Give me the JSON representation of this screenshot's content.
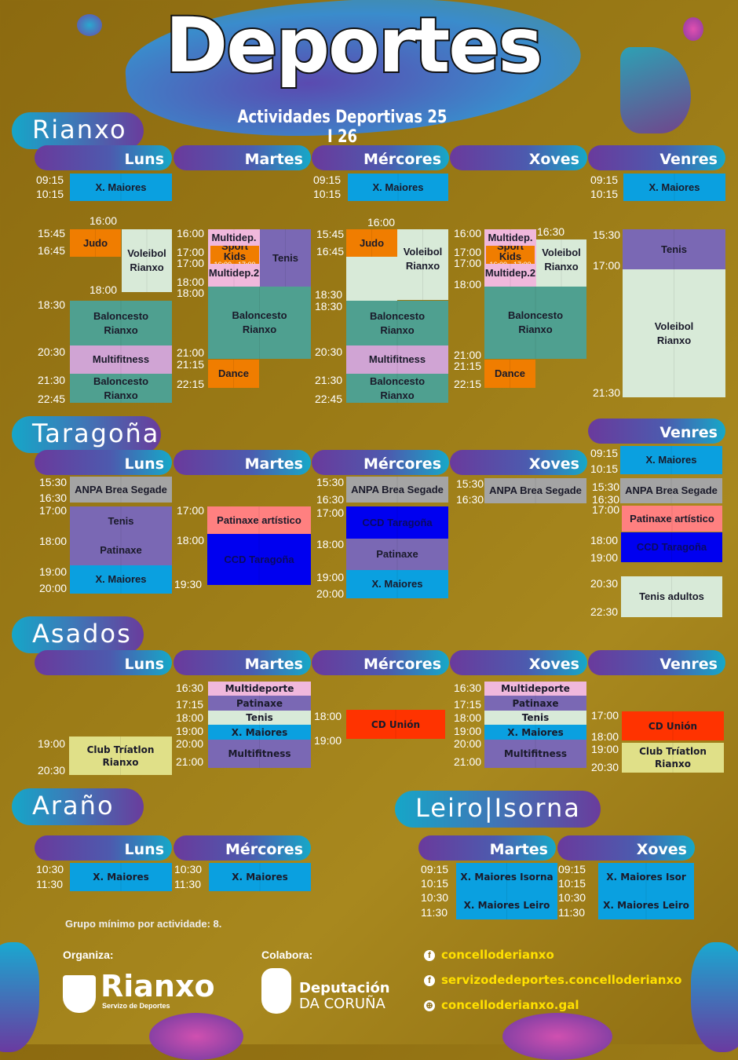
{
  "header": {
    "title": "Deportes",
    "subtitle": "Actividades Deportivas 25 I 26"
  },
  "colors": {
    "x_maiores": "#0aa0e0",
    "orange": "#f07d00",
    "light_green": "#d8ead8",
    "teal": "#4fa090",
    "lilac": "#d0a4d4",
    "pink": "#f0b8dc",
    "purple": "#7a68b4",
    "gray": "#a4a4a4",
    "salmon": "#ff8080",
    "blue": "#0000f0",
    "red": "#ff3300",
    "yellow_green": "#e0e088"
  },
  "sections": [
    {
      "label": "Rianxo",
      "days": [
        "Luns",
        "Martes",
        "Mércores",
        "Xoves",
        "Venres"
      ],
      "blocks": [
        {
          "label": "X. Maiores",
          "color": "#0aa0e0"
        },
        {
          "label": "Judo",
          "color": "#f07d00"
        },
        {
          "label": "Voleibol\nRianxo",
          "color": "#d8ead8"
        },
        {
          "label": "Baloncesto\nRianxo",
          "color": "#4fa090"
        },
        {
          "label": "Multifitness",
          "color": "#d0a4d4"
        },
        {
          "label": "Baloncesto\nRianxo",
          "color": "#4fa090"
        },
        {
          "label": "Multidep. 1",
          "color": "#f0b8dc"
        },
        {
          "label": "Multidep.2",
          "color": "#f0b8dc"
        },
        {
          "label": "Sport Kids",
          "sub": "16:00 - 17:00",
          "color": "#f07d00"
        },
        {
          "label": "Tenis",
          "color": "#7a68b4"
        },
        {
          "label": "Baloncesto\nRianxo",
          "color": "#4fa090"
        },
        {
          "label": "Dance",
          "color": "#f07d00"
        },
        {
          "label": "X. Maiores",
          "color": "#0aa0e0"
        },
        {
          "label": "Judo",
          "color": "#f07d00"
        },
        {
          "label": "Voleibol\nRianxo",
          "color": "#d8ead8"
        },
        {
          "label": "Baloncesto\nRianxo",
          "color": "#4fa090"
        },
        {
          "label": "Multifitness",
          "color": "#d0a4d4"
        },
        {
          "label": "Baloncesto\nRianxo",
          "color": "#4fa090"
        },
        {
          "label": "Multidep. 1",
          "color": "#f0b8dc"
        },
        {
          "label": "Multidep.2",
          "color": "#f0b8dc"
        },
        {
          "label": "Sport Kids",
          "sub": "16:00 - 17:00",
          "color": "#f07d00"
        },
        {
          "label": "Voleibol\nRianxo",
          "color": "#d8ead8",
          "note": "18:30"
        },
        {
          "label": "Baloncesto\nRianxo",
          "color": "#4fa090"
        },
        {
          "label": "Dance",
          "color": "#f07d00"
        },
        {
          "label": "X. Maiores",
          "color": "#0aa0e0"
        },
        {
          "label": "Tenis",
          "color": "#7a68b4"
        },
        {
          "label": "Voleibol\nRianxo",
          "color": "#d8ead8"
        }
      ],
      "times": [
        "09:15",
        "10:15",
        "16:00",
        "15:45",
        "16:45",
        "18:00",
        "18:30",
        "20:30",
        "21:30",
        "22:45",
        "16:00",
        "17:00",
        "17:00",
        "18:00",
        "18:00",
        "21:00",
        "21:15",
        "22:15",
        "09:15",
        "10:15",
        "16:00",
        "15:45",
        "16:45",
        "18:30",
        "18:30",
        "20:30",
        "21:30",
        "22:45",
        "16:00",
        "16:30",
        "17:00",
        "17:00",
        "18:00",
        "21:00",
        "21:15",
        "22:15",
        "09:15",
        "10:15",
        "15:30",
        "17:00",
        "21:30"
      ]
    },
    {
      "label": "Taragoña",
      "days": [
        "Luns",
        "Martes",
        "Mércores",
        "Xoves",
        "Venres"
      ],
      "blocks": [
        {
          "label": "ANPA Brea Segade",
          "color": "#a4a4a4"
        },
        {
          "label": "Tenis",
          "color": "#7a68b4"
        },
        {
          "label": "Patinaxe",
          "color": "#7a68b4"
        },
        {
          "label": "X. Maiores",
          "color": "#0aa0e0"
        },
        {
          "label": "Patinaxe artístico",
          "color": "#ff8080"
        },
        {
          "label": "CCD Taragoña",
          "color": "#0000f0"
        },
        {
          "label": "ANPA Brea Segade",
          "color": "#a4a4a4"
        },
        {
          "label": "CCD Taragoña",
          "color": "#0000f0"
        },
        {
          "label": "Patinaxe",
          "color": "#7a68b4"
        },
        {
          "label": "X. Maiores",
          "color": "#0aa0e0"
        },
        {
          "label": "ANPA Brea Segade",
          "color": "#a4a4a4"
        },
        {
          "label": "X. Maiores",
          "color": "#0aa0e0"
        },
        {
          "label": "ANPA Brea Segade",
          "color": "#a4a4a4"
        },
        {
          "label": "Patinaxe artístico",
          "color": "#ff8080"
        },
        {
          "label": "CCD Taragoña",
          "color": "#0000f0"
        },
        {
          "label": "Tenis adultos",
          "color": "#d8ead8"
        }
      ],
      "times": [
        "15:30",
        "16:30",
        "17:00",
        "18:00",
        "19:00",
        "20:00",
        "17:00",
        "18:00",
        "19:30",
        "15:30",
        "16:30",
        "17:00",
        "18:00",
        "19:00",
        "20:00",
        "15:30",
        "16:30",
        "09:15",
        "10:15",
        "15:30",
        "16:30",
        "17:00",
        "18:00",
        "19:00",
        "20:30",
        "22:30"
      ]
    },
    {
      "label": "Asados",
      "days": [
        "Luns",
        "Martes",
        "Mércores",
        "Xoves",
        "Venres"
      ],
      "blocks": [
        {
          "label": "Club Tríatlon\nRianxo",
          "color": "#e0e088"
        },
        {
          "label": "Multideporte",
          "color": "#f0b8dc"
        },
        {
          "label": "Patinaxe",
          "color": "#7a68b4"
        },
        {
          "label": "Tenis",
          "color": "#d8ead8"
        },
        {
          "label": "X. Maiores",
          "color": "#0aa0e0"
        },
        {
          "label": "Multifitness",
          "color": "#7a68b4"
        },
        {
          "label": "CD Unión",
          "color": "#ff3300"
        },
        {
          "label": "Multideporte",
          "color": "#f0b8dc"
        },
        {
          "label": "Patinaxe",
          "color": "#7a68b4"
        },
        {
          "label": "Tenis",
          "color": "#d8ead8"
        },
        {
          "label": "X. Maiores",
          "color": "#0aa0e0"
        },
        {
          "label": "Multifitness",
          "color": "#7a68b4"
        },
        {
          "label": "CD Unión",
          "color": "#ff3300"
        },
        {
          "label": "Club Tríatlon\nRianxo",
          "color": "#e0e088"
        }
      ],
      "times": [
        "19:00",
        "20:30",
        "16:30",
        "17:15",
        "18:00",
        "19:00",
        "20:00",
        "21:00",
        "18:00",
        "19:00",
        "16:30",
        "17:15",
        "18:00",
        "19:00",
        "20:00",
        "21:00",
        "17:00",
        "18:00",
        "19:00",
        "20:30"
      ]
    },
    {
      "label": "Araño",
      "days": [
        "Luns",
        "Mércores"
      ],
      "blocks": [
        {
          "label": "X. Maiores",
          "color": "#0aa0e0"
        },
        {
          "label": "X. Maiores",
          "color": "#0aa0e0"
        }
      ],
      "times": [
        "10:30",
        "11:30",
        "10:30",
        "11:30"
      ]
    },
    {
      "label": "Leiro|Isorna",
      "days": [
        "Martes",
        "Xoves"
      ],
      "blocks": [
        {
          "label": "X. Maiores Isorna",
          "color": "#0aa0e0"
        },
        {
          "label": "X. Maiores Leiro",
          "color": "#0aa0e0"
        },
        {
          "label": "X. Maiores Isor",
          "color": "#0aa0e0"
        },
        {
          "label": "X. Maiores Leiro",
          "color": "#0aa0e0"
        }
      ],
      "times": [
        "09:15",
        "10:15",
        "10:30",
        "11:30",
        "09:15",
        "10:15",
        "10:30",
        "11:30"
      ]
    }
  ],
  "footer": {
    "min_group": "Grupo mínimo por actividade: 8.",
    "organiza": "Organiza:",
    "colabora": "Colabora:",
    "organizer_logo": {
      "name": "Rianxo",
      "tagline": "Servizo de Deportes"
    },
    "collaborator_logo": {
      "line1": "Deputación",
      "line2": "DA CORUÑA"
    },
    "links": [
      {
        "icon": "facebook-icon",
        "text": "concelloderianxo"
      },
      {
        "icon": "facebook-icon",
        "text": "servizodedeportes.concelloderianxo"
      },
      {
        "icon": "globe-icon",
        "text": "concelloderianxo.gal"
      }
    ]
  }
}
